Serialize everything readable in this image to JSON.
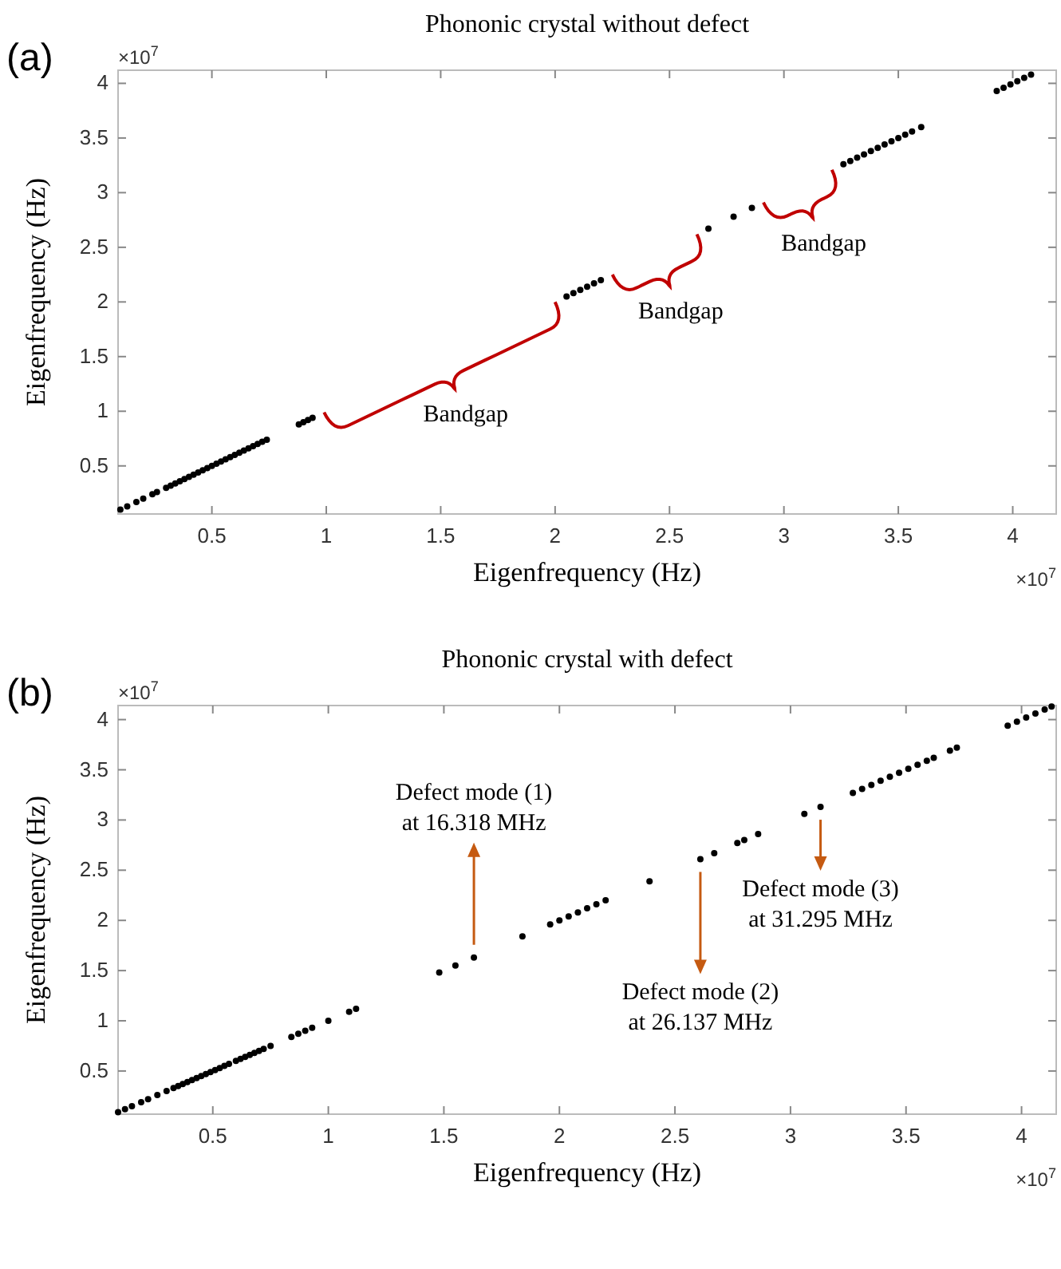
{
  "chart_data": [
    {
      "type": "scatter",
      "title": "Phononic crystal without defect",
      "xlabel": "Eigenfrequency (Hz)",
      "ylabel": "Eigenfrequency (Hz)",
      "marker": "circle",
      "grid": false,
      "xlim": [
        0.09,
        4.19
      ],
      "ylim": [
        0.06,
        4.12
      ],
      "xticks": [
        0.5,
        1,
        1.5,
        2,
        2.5,
        3,
        3.5,
        4
      ],
      "yticks": [
        0.5,
        1,
        1.5,
        2,
        2.5,
        3,
        3.5,
        4
      ],
      "series": [
        {
          "color": "#000000",
          "x": [
            0.1,
            0.13,
            0.17,
            0.2,
            0.24,
            0.26,
            0.3,
            0.32,
            0.34,
            0.36,
            0.38,
            0.4,
            0.42,
            0.44,
            0.46,
            0.48,
            0.5,
            0.52,
            0.54,
            0.56,
            0.58,
            0.6,
            0.62,
            0.64,
            0.66,
            0.68,
            0.7,
            0.72,
            0.74,
            0.88,
            0.9,
            0.92,
            0.94,
            2.05,
            2.08,
            2.11,
            2.14,
            2.17,
            2.2,
            2.67,
            2.78,
            2.86,
            3.26,
            3.29,
            3.32,
            3.35,
            3.38,
            3.41,
            3.44,
            3.47,
            3.5,
            3.53,
            3.56,
            3.6,
            3.93,
            3.96,
            3.99,
            4.02,
            4.05,
            4.08
          ],
          "values": [
            0.1,
            0.13,
            0.17,
            0.2,
            0.24,
            0.26,
            0.3,
            0.32,
            0.34,
            0.36,
            0.38,
            0.4,
            0.42,
            0.44,
            0.46,
            0.48,
            0.5,
            0.52,
            0.54,
            0.56,
            0.58,
            0.6,
            0.62,
            0.64,
            0.66,
            0.68,
            0.7,
            0.72,
            0.74,
            0.88,
            0.9,
            0.92,
            0.94,
            2.05,
            2.08,
            2.11,
            2.14,
            2.17,
            2.2,
            2.67,
            2.78,
            2.86,
            3.26,
            3.29,
            3.32,
            3.35,
            3.38,
            3.41,
            3.44,
            3.47,
            3.5,
            3.53,
            3.56,
            3.6,
            3.93,
            3.96,
            3.99,
            4.02,
            4.05,
            4.08
          ]
        }
      ],
      "annotations": [
        "(a)",
        "×10$^{7}$",
        "×10$^{7}$",
        "Bandgap",
        "Bandgap",
        "Bandgap"
      ]
    },
    {
      "type": "scatter",
      "title": "Phononic crystal with defect",
      "xlabel": "Eigenfrequency (Hz)",
      "ylabel": "Eigenfrequency (Hz)",
      "marker": "circle",
      "grid": false,
      "xlim": [
        0.09,
        4.15
      ],
      "ylim": [
        0.07,
        4.14
      ],
      "xticks": [
        0.5,
        1,
        1.5,
        2,
        2.5,
        3,
        3.5,
        4
      ],
      "yticks": [
        0.5,
        1,
        1.5,
        2,
        2.5,
        3,
        3.5,
        4
      ],
      "series": [
        {
          "color": "#000000",
          "x": [
            0.09,
            0.12,
            0.15,
            0.19,
            0.22,
            0.26,
            0.3,
            0.33,
            0.35,
            0.37,
            0.39,
            0.41,
            0.43,
            0.45,
            0.47,
            0.49,
            0.51,
            0.53,
            0.55,
            0.57,
            0.6,
            0.62,
            0.64,
            0.66,
            0.68,
            0.7,
            0.72,
            0.75,
            0.84,
            0.87,
            0.9,
            0.93,
            1.0,
            1.09,
            1.12,
            1.48,
            1.55,
            1.63,
            1.84,
            1.96,
            2.0,
            2.04,
            2.08,
            2.12,
            2.16,
            2.2,
            2.39,
            2.61,
            2.67,
            2.77,
            2.8,
            2.86,
            3.06,
            3.13,
            3.27,
            3.31,
            3.35,
            3.39,
            3.43,
            3.47,
            3.51,
            3.55,
            3.59,
            3.62,
            3.69,
            3.72,
            3.94,
            3.98,
            4.02,
            4.06,
            4.1,
            4.13
          ],
          "values": [
            0.09,
            0.12,
            0.15,
            0.19,
            0.22,
            0.26,
            0.3,
            0.33,
            0.35,
            0.37,
            0.39,
            0.41,
            0.43,
            0.45,
            0.47,
            0.49,
            0.51,
            0.53,
            0.55,
            0.57,
            0.6,
            0.62,
            0.64,
            0.66,
            0.68,
            0.7,
            0.72,
            0.75,
            0.84,
            0.87,
            0.9,
            0.93,
            1.0,
            1.09,
            1.12,
            1.48,
            1.55,
            1.63,
            1.84,
            1.96,
            2.0,
            2.04,
            2.08,
            2.12,
            2.16,
            2.2,
            2.39,
            2.61,
            2.67,
            2.77,
            2.8,
            2.86,
            3.06,
            3.13,
            3.27,
            3.31,
            3.35,
            3.39,
            3.43,
            3.47,
            3.51,
            3.55,
            3.59,
            3.62,
            3.69,
            3.72,
            3.94,
            3.98,
            4.02,
            4.06,
            4.1,
            4.13
          ]
        }
      ],
      "annotations": [
        "(b)",
        "×10$^{7}$",
        "×10$^{7}$",
        {
          "text": "Defect mode (1)\nat 16.318 MHz",
          "x": 1.63,
          "y": 1.63
        },
        {
          "text": "Defect mode (2)\nat 26.137 MHz",
          "x": 2.61,
          "y": 2.61
        },
        {
          "text": "Defect mode (3)\nat 31.295 MHz",
          "x": 3.13,
          "y": 3.13
        }
      ]
    }
  ]
}
